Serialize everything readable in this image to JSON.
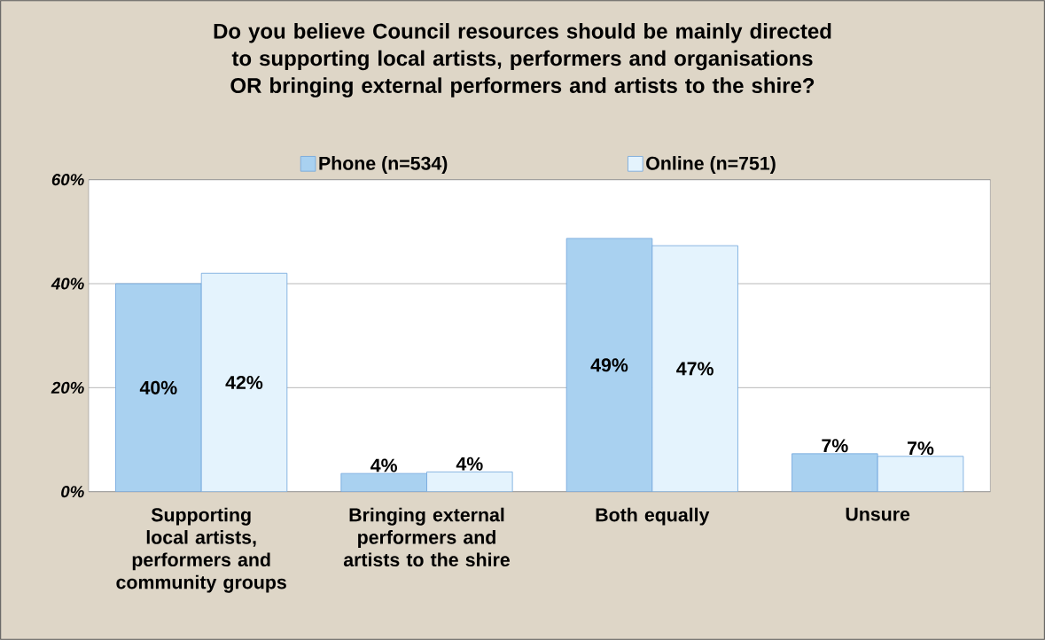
{
  "chart_data": {
    "type": "bar",
    "title": "Do you believe Council resources should be mainly directed to supporting local artists, performers and organisations OR bringing external performers and artists to the shire?",
    "categories": [
      "Supporting local artists, performers and community groups",
      "Bringing external performers and artists to the shire",
      "Both equally",
      "Unsure"
    ],
    "series": [
      {
        "name": "Phone (n=534)",
        "color": "#a9d1f0",
        "values": [
          40,
          3.5,
          48.7,
          7.3
        ],
        "value_labels": [
          "40%",
          "4%",
          "49%",
          "7%"
        ]
      },
      {
        "name": "Online (n=751)",
        "color": "#e4f3fd",
        "values": [
          42,
          3.8,
          47.3,
          6.8
        ],
        "value_labels": [
          "42%",
          "4%",
          "47%",
          "7%"
        ]
      }
    ],
    "ylim": [
      0,
      60
    ],
    "yticks": [
      {
        "value": 0,
        "label": "0%"
      },
      {
        "value": 20,
        "label": "20%"
      },
      {
        "value": 40,
        "label": "40%"
      },
      {
        "value": 60,
        "label": "60%"
      }
    ],
    "grid": "y",
    "legend": "top"
  }
}
